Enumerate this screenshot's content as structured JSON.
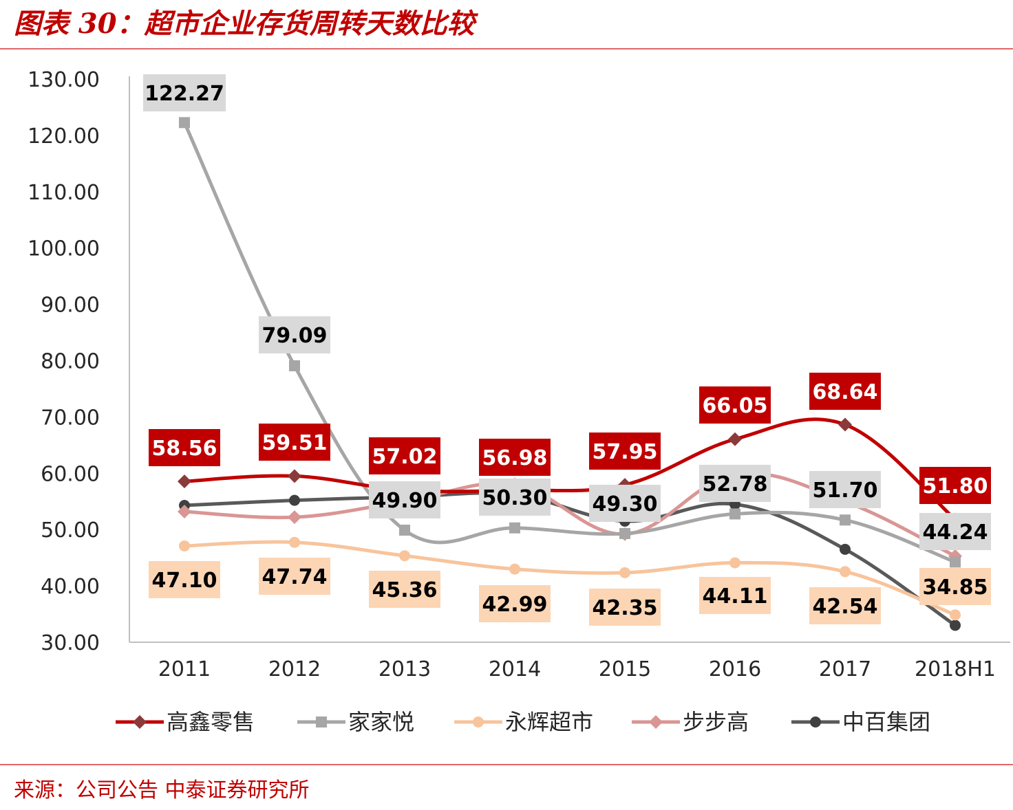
{
  "header": {
    "title": "图表 30：超市企业存货周转天数比较"
  },
  "footer": {
    "source": "来源：公司公告 中泰证券研究所"
  },
  "colors": {
    "accent": "#c00000",
    "rule": "#e06666"
  },
  "chart_data": {
    "type": "line",
    "title": "",
    "xlabel": "",
    "ylabel": "",
    "categories": [
      "2011",
      "2012",
      "2013",
      "2014",
      "2015",
      "2016",
      "2017",
      "2018H1"
    ],
    "ylim": [
      30,
      130
    ],
    "yticks": [
      "30.00",
      "40.00",
      "50.00",
      "60.00",
      "70.00",
      "80.00",
      "90.00",
      "100.00",
      "110.00",
      "120.00",
      "130.00"
    ],
    "grid": false,
    "legend_position": "bottom",
    "series": [
      {
        "name": "高鑫零售",
        "marker": "diamond",
        "color": "#c00000",
        "marker_color": "#8b3a3a",
        "values": [
          58.56,
          59.51,
          57.02,
          56.98,
          57.95,
          66.05,
          68.64,
          51.8
        ],
        "labels": [
          "58.56",
          "59.51",
          "57.02",
          "56.98",
          "57.95",
          "66.05",
          "68.64",
          "51.80"
        ],
        "label_bg": "#c00000",
        "label_color": "#ffffff"
      },
      {
        "name": "家家悦",
        "marker": "square",
        "color": "#a6a6a6",
        "marker_color": "#a6a6a6",
        "values": [
          122.27,
          79.09,
          49.9,
          50.3,
          49.3,
          52.78,
          51.7,
          44.24
        ],
        "labels": [
          "122.27",
          "79.09",
          "49.90",
          "50.30",
          "49.30",
          "52.78",
          "51.70",
          "44.24"
        ],
        "label_bg": "#d9d9d9",
        "label_color": "#000000"
      },
      {
        "name": "永辉超市",
        "marker": "circle",
        "color": "#f8c49c",
        "marker_color": "#f8c49c",
        "values": [
          47.1,
          47.74,
          45.36,
          42.99,
          42.35,
          44.11,
          42.54,
          34.85
        ],
        "labels": [
          "47.10",
          "47.74",
          "45.36",
          "42.99",
          "42.35",
          "44.11",
          "42.54",
          "34.85"
        ],
        "label_bg": "#fcd5b4",
        "label_color": "#000000"
      },
      {
        "name": "步步高",
        "marker": "diamond",
        "color": "#d99694",
        "marker_color": "#d99694",
        "values": [
          53.2,
          52.2,
          55.0,
          58.0,
          49.2,
          59.8,
          55.0,
          45.3
        ],
        "labels": [],
        "label_bg": "",
        "label_color": ""
      },
      {
        "name": "中百集团",
        "marker": "circle",
        "color": "#595959",
        "marker_color": "#404040",
        "values": [
          54.3,
          55.2,
          55.8,
          56.2,
          51.5,
          54.5,
          46.5,
          33.0
        ],
        "labels": [],
        "label_bg": "",
        "label_color": ""
      }
    ]
  }
}
